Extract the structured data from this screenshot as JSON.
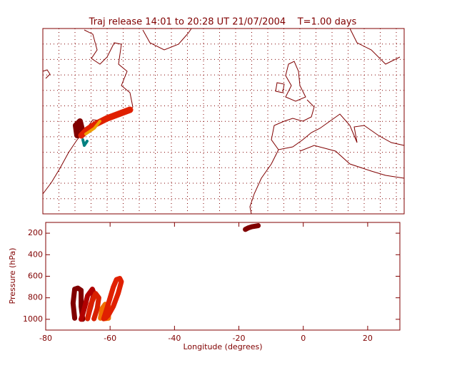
{
  "chart_data": {
    "type": "line",
    "title": "Traj release 14:01 to 20:28 UT 21/07/2004    T=1.00 days",
    "xlabel": "Longitude  (degrees)",
    "ylabel": "Pressure  (hPa)",
    "xlim": [
      -80,
      30
    ],
    "ylim": [
      1100,
      100
    ],
    "xticks": [
      -80,
      -60,
      -40,
      -20,
      0,
      20
    ],
    "yticks": [
      200,
      400,
      600,
      800,
      1000
    ],
    "axis_color": "#800000",
    "series": [
      {
        "color": "#800000",
        "x": [
          -71,
          -71.5,
          -71,
          -70,
          -69,
          -69,
          -68.5
        ],
        "values": [
          990,
          850,
          720,
          710,
          730,
          880,
          1000
        ]
      },
      {
        "color": "#b00000",
        "x": [
          -69,
          -68,
          -67,
          -65.5,
          -65,
          -66,
          -67
        ],
        "values": [
          1000,
          900,
          780,
          720,
          760,
          880,
          990
        ]
      },
      {
        "color": "#d82000",
        "x": [
          -67,
          -66,
          -64.5,
          -63.5,
          -64,
          -65
        ],
        "values": [
          995,
          860,
          760,
          800,
          900,
          995
        ]
      },
      {
        "color": "#f07000",
        "x": [
          -63,
          -62.5,
          -61.5,
          -60.5,
          -60.5,
          -62
        ],
        "values": [
          990,
          900,
          860,
          880,
          990,
          995
        ]
      },
      {
        "color": "#e02000",
        "x": [
          -62,
          -61,
          -60,
          -59,
          -58,
          -57,
          -56.5,
          -57.5,
          -59,
          -60.5,
          -61.5
        ],
        "values": [
          995,
          900,
          800,
          700,
          630,
          620,
          650,
          760,
          880,
          960,
          990
        ]
      },
      {
        "color": "#800000",
        "x": [
          -18,
          -17,
          -16,
          -15,
          -14
        ],
        "values": [
          165,
          150,
          140,
          135,
          130
        ]
      }
    ]
  }
}
